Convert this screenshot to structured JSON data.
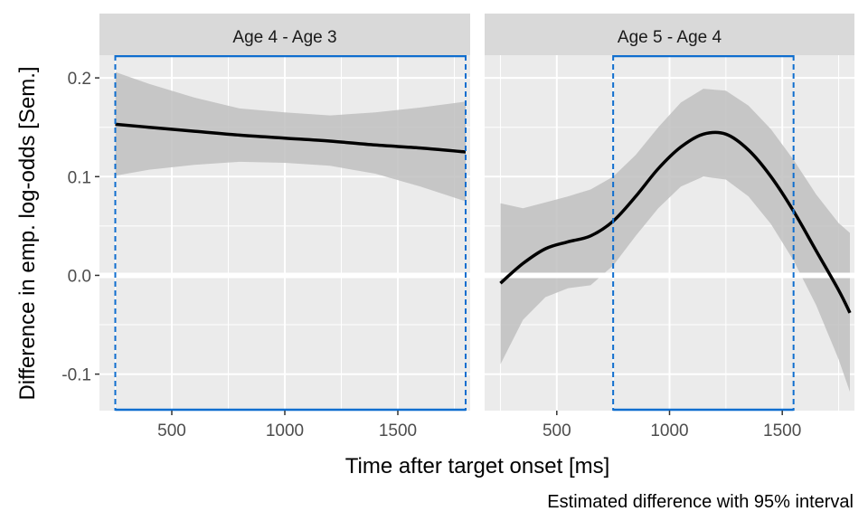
{
  "chart_data": {
    "type": "line",
    "ylabel": "Difference in emp. log-odds [Sem.]",
    "xlabel": "Time after target onset [ms]",
    "caption": "Estimated difference with 95% interval",
    "xlim": [
      180,
      1820
    ],
    "ylim": [
      -0.137,
      0.223
    ],
    "y_ticks": [
      0.2,
      0.1,
      0.0,
      -0.1
    ],
    "y_tick_labels": [
      "0.2",
      "0.1",
      "0.0",
      "-0.1"
    ],
    "x_ticks": [
      500,
      1000,
      1500
    ],
    "x_tick_labels": [
      "500",
      "1000",
      "1500"
    ],
    "zero_line": 0,
    "colors": {
      "panel_bg": "#ebebeb",
      "strip_bg": "#d9d9d9",
      "grid": "#ffffff",
      "ribbon": "#bfbfbf",
      "line": "#000000",
      "interval": "#0f6ecf"
    },
    "panels": [
      {
        "strip": "Age 4 - Age 3",
        "series": {
          "x": [
            250,
            400,
            600,
            800,
            1000,
            1200,
            1400,
            1600,
            1800
          ],
          "y": [
            0.153,
            0.15,
            0.146,
            0.142,
            0.139,
            0.136,
            0.132,
            0.129,
            0.125
          ],
          "lower": [
            0.101,
            0.107,
            0.112,
            0.115,
            0.114,
            0.111,
            0.103,
            0.09,
            0.075
          ],
          "upper": [
            0.206,
            0.194,
            0.18,
            0.169,
            0.165,
            0.162,
            0.165,
            0.17,
            0.176
          ]
        },
        "interval": [
          250,
          1800
        ]
      },
      {
        "strip": "Age 5 - Age 4",
        "series": {
          "x": [
            250,
            350,
            450,
            550,
            650,
            750,
            850,
            950,
            1050,
            1150,
            1250,
            1350,
            1450,
            1550,
            1650,
            1750,
            1800
          ],
          "y": [
            -0.008,
            0.012,
            0.027,
            0.034,
            0.04,
            0.055,
            0.08,
            0.108,
            0.13,
            0.143,
            0.143,
            0.127,
            0.1,
            0.065,
            0.025,
            -0.015,
            -0.038
          ],
          "lower": [
            -0.09,
            -0.045,
            -0.022,
            -0.013,
            -0.01,
            0.01,
            0.04,
            0.068,
            0.09,
            0.1,
            0.097,
            0.08,
            0.052,
            0.015,
            -0.03,
            -0.085,
            -0.118
          ],
          "upper": [
            0.073,
            0.068,
            0.074,
            0.08,
            0.087,
            0.1,
            0.122,
            0.15,
            0.175,
            0.189,
            0.187,
            0.172,
            0.148,
            0.117,
            0.082,
            0.053,
            0.043
          ]
        },
        "interval": [
          750,
          1550
        ]
      }
    ]
  }
}
